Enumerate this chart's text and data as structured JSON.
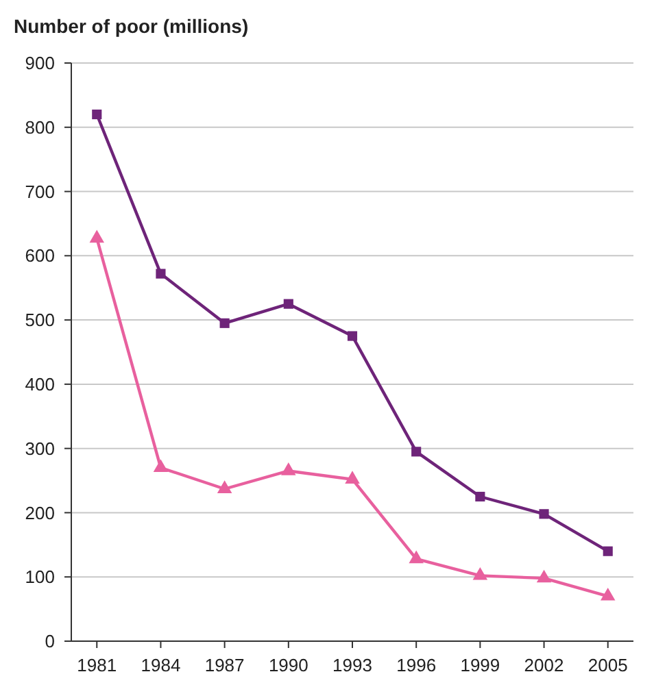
{
  "chart_data": {
    "type": "line",
    "title": "Number of poor (millions)",
    "categories": [
      "1981",
      "1984",
      "1987",
      "1990",
      "1993",
      "1996",
      "1999",
      "2002",
      "2005"
    ],
    "series": [
      {
        "color": "#6e2479",
        "marker": "square",
        "values": [
          820,
          572,
          495,
          525,
          475,
          295,
          225,
          198,
          140
        ]
      },
      {
        "color": "#e8609e",
        "marker": "triangle",
        "values": [
          627,
          270,
          237,
          265,
          252,
          128,
          102,
          98,
          70
        ]
      }
    ],
    "ylim": [
      0,
      900
    ],
    "yticks": [
      0,
      100,
      200,
      300,
      400,
      500,
      600,
      700,
      800,
      900
    ],
    "grid": "y"
  }
}
